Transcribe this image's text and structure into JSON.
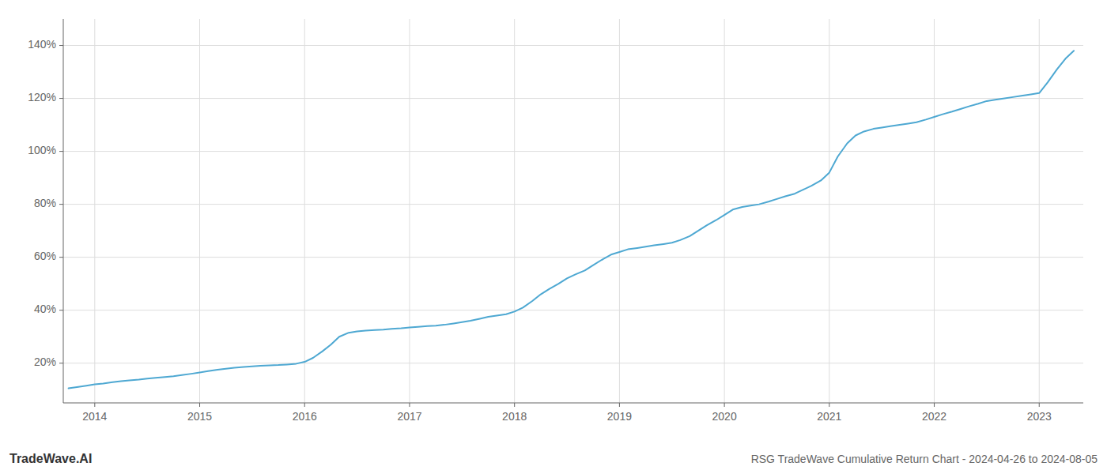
{
  "chart_data": {
    "type": "line",
    "title": "RSG TradeWave Cumulative Return Chart - 2024-04-26 to 2024-08-05",
    "annotations": [
      "TradeWave.AI"
    ],
    "color": "#4ea8d2",
    "grid": true,
    "x": [
      2013.75,
      2013.83,
      2013.92,
      2014.0,
      2014.08,
      2014.17,
      2014.25,
      2014.33,
      2014.42,
      2014.5,
      2014.58,
      2014.67,
      2014.75,
      2014.83,
      2014.92,
      2015.0,
      2015.08,
      2015.17,
      2015.25,
      2015.33,
      2015.42,
      2015.5,
      2015.58,
      2015.67,
      2015.75,
      2015.83,
      2015.92,
      2016.0,
      2016.08,
      2016.17,
      2016.25,
      2016.33,
      2016.42,
      2016.5,
      2016.58,
      2016.67,
      2016.75,
      2016.83,
      2016.92,
      2017.0,
      2017.08,
      2017.17,
      2017.25,
      2017.33,
      2017.42,
      2017.5,
      2017.58,
      2017.67,
      2017.75,
      2017.83,
      2017.92,
      2018.0,
      2018.08,
      2018.17,
      2018.25,
      2018.33,
      2018.42,
      2018.5,
      2018.58,
      2018.67,
      2018.75,
      2018.83,
      2018.92,
      2019.0,
      2019.08,
      2019.17,
      2019.25,
      2019.33,
      2019.42,
      2019.5,
      2019.58,
      2019.67,
      2019.75,
      2019.83,
      2019.92,
      2020.0,
      2020.08,
      2020.17,
      2020.25,
      2020.33,
      2020.42,
      2020.5,
      2020.58,
      2020.67,
      2020.75,
      2020.83,
      2020.92,
      2021.0,
      2021.08,
      2021.17,
      2021.25,
      2021.33,
      2021.42,
      2021.5,
      2021.58,
      2021.67,
      2021.75,
      2021.83,
      2021.92,
      2022.0,
      2022.08,
      2022.17,
      2022.25,
      2022.33,
      2022.42,
      2022.5,
      2022.58,
      2022.67,
      2022.75,
      2022.83,
      2022.92,
      2023.0,
      2023.08,
      2023.17,
      2023.25,
      2023.33
    ],
    "values": [
      10.5,
      11.0,
      11.5,
      12.0,
      12.3,
      12.8,
      13.2,
      13.5,
      13.8,
      14.2,
      14.5,
      14.8,
      15.1,
      15.5,
      16.0,
      16.5,
      17.0,
      17.5,
      17.9,
      18.3,
      18.6,
      18.8,
      19.0,
      19.2,
      19.3,
      19.5,
      19.8,
      20.5,
      22.0,
      24.5,
      27.0,
      30.0,
      31.5,
      32.0,
      32.3,
      32.5,
      32.7,
      33.0,
      33.2,
      33.5,
      33.7,
      34.0,
      34.2,
      34.5,
      35.0,
      35.5,
      36.0,
      36.8,
      37.5,
      38.0,
      38.5,
      39.5,
      41.0,
      43.5,
      46.0,
      48.0,
      50.0,
      52.0,
      53.5,
      55.0,
      57.0,
      59.0,
      61.0,
      62.0,
      63.0,
      63.5,
      64.0,
      64.5,
      65.0,
      65.5,
      66.5,
      68.0,
      70.0,
      72.0,
      74.0,
      76.0,
      78.0,
      79.0,
      79.5,
      80.0,
      81.0,
      82.0,
      83.0,
      84.0,
      85.5,
      87.0,
      89.0,
      92.0,
      98.0,
      103.0,
      106.0,
      107.5,
      108.5,
      109.0,
      109.5,
      110.0,
      110.5,
      111.0,
      112.0,
      113.0,
      114.0,
      115.0,
      116.0,
      117.0,
      118.0,
      119.0,
      119.5,
      120.0,
      120.5,
      121.0,
      121.5,
      122.0,
      126.0,
      131.0,
      135.0,
      138.0
    ],
    "xlim": [
      2013.7,
      2023.42
    ],
    "ylim": [
      5,
      150
    ],
    "xticks": [
      2014,
      2015,
      2016,
      2017,
      2018,
      2019,
      2020,
      2021,
      2022,
      2023
    ],
    "yticks": [
      {
        "value": 20,
        "label": "20%"
      },
      {
        "value": 40,
        "label": "40%"
      },
      {
        "value": 60,
        "label": "60%"
      },
      {
        "value": 80,
        "label": "80%"
      },
      {
        "value": 100,
        "label": "100%"
      },
      {
        "value": 120,
        "label": "120%"
      },
      {
        "value": 140,
        "label": "140%"
      }
    ]
  }
}
